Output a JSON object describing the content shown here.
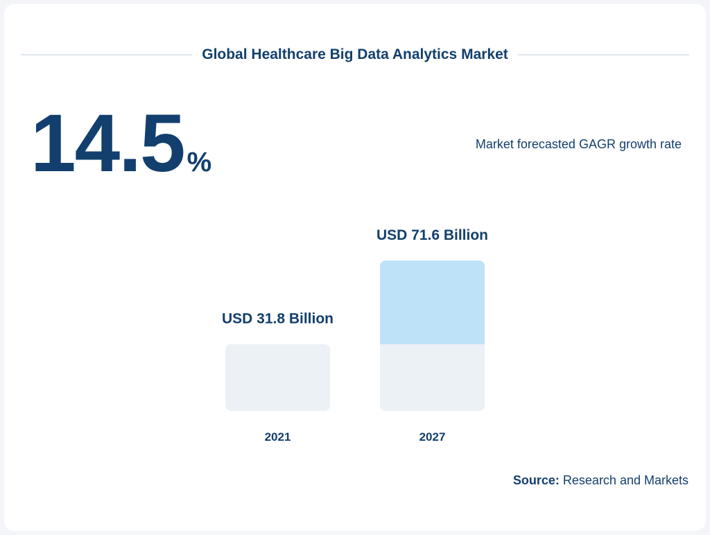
{
  "title": "Global Healthcare Big Data Analytics Market",
  "headline": {
    "value": "14.5",
    "unit": "%",
    "caption": "Market forecasted GAGR growth rate"
  },
  "source": {
    "label": "Source:",
    "text": "Research and Markets"
  },
  "colors": {
    "text": "#123f6d",
    "bar": "#ecf1f6",
    "growth": "#bee2f7"
  },
  "chart_data": {
    "type": "bar",
    "title": "",
    "categories": [
      "2021",
      "2027"
    ],
    "values": [
      31.8,
      71.6
    ],
    "data_labels": [
      "USD 31.8 Billion",
      "USD 71.6 Billion"
    ],
    "unit": "USD Billion",
    "grid": false,
    "ylim": [
      0,
      71.6
    ]
  }
}
